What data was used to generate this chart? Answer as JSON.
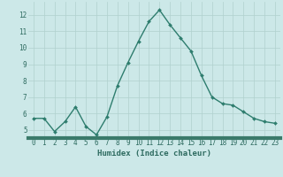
{
  "x": [
    0,
    1,
    2,
    3,
    4,
    5,
    6,
    7,
    8,
    9,
    10,
    11,
    12,
    13,
    14,
    15,
    16,
    17,
    18,
    19,
    20,
    21,
    22,
    23
  ],
  "y": [
    5.7,
    5.7,
    4.9,
    5.5,
    6.4,
    5.2,
    4.7,
    5.8,
    7.7,
    9.1,
    10.4,
    11.6,
    12.3,
    11.4,
    10.6,
    9.8,
    8.3,
    7.0,
    6.6,
    6.5,
    6.1,
    5.7,
    5.5,
    5.4
  ],
  "line_color": "#2e7d6e",
  "marker": "D",
  "markersize": 2,
  "linewidth": 1.0,
  "bg_color": "#cce8e8",
  "grid_color": "#b0d0ce",
  "xlabel": "Humidex (Indice chaleur)",
  "ylim": [
    4.5,
    12.8
  ],
  "yticks": [
    5,
    6,
    7,
    8,
    9,
    10,
    11,
    12
  ],
  "xticks": [
    0,
    1,
    2,
    3,
    4,
    5,
    6,
    7,
    8,
    9,
    10,
    11,
    12,
    13,
    14,
    15,
    16,
    17,
    18,
    19,
    20,
    21,
    22,
    23
  ],
  "tick_color": "#2e6b60",
  "tick_fontsize": 5.5,
  "xlabel_fontsize": 6.5,
  "axis_line_color": "#2e7d6e",
  "bottom_bar_color": "#3a7a6a"
}
